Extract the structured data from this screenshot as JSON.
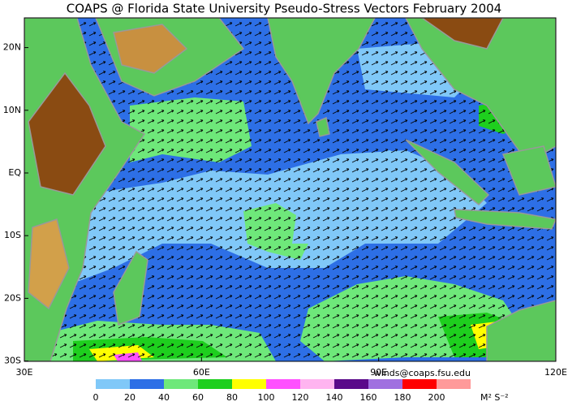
{
  "title": "COAPS @ Florida State University Pseudo-Stress Vectors February 2004",
  "map": {
    "lat_labels": [
      {
        "value": 20,
        "label": "20N"
      },
      {
        "value": 10,
        "label": "10N"
      },
      {
        "value": 0,
        "label": "EQ"
      },
      {
        "value": -10,
        "label": "10S"
      },
      {
        "value": -20,
        "label": "20S"
      },
      {
        "value": -30,
        "label": "30S"
      }
    ],
    "lon_labels": [
      {
        "value": 30,
        "label": "30E"
      },
      {
        "value": 60,
        "label": "60E"
      },
      {
        "value": 90,
        "label": "90E"
      },
      {
        "value": 120,
        "label": "120E"
      }
    ]
  },
  "credit": "winds@coaps.fsu.edu",
  "colorbar": {
    "ticks": [
      0,
      20,
      40,
      60,
      80,
      100,
      120,
      140,
      160,
      180,
      200
    ],
    "colors": [
      "#80c8f8",
      "#2d6fe6",
      "#6ee87a",
      "#1ecf1e",
      "#ffff00",
      "#ff50ff",
      "#ffb4f0",
      "#5a0a8a",
      "#a070e0",
      "#ff0000",
      "#ff9a9a"
    ],
    "unit": "M² S⁻²"
  }
}
